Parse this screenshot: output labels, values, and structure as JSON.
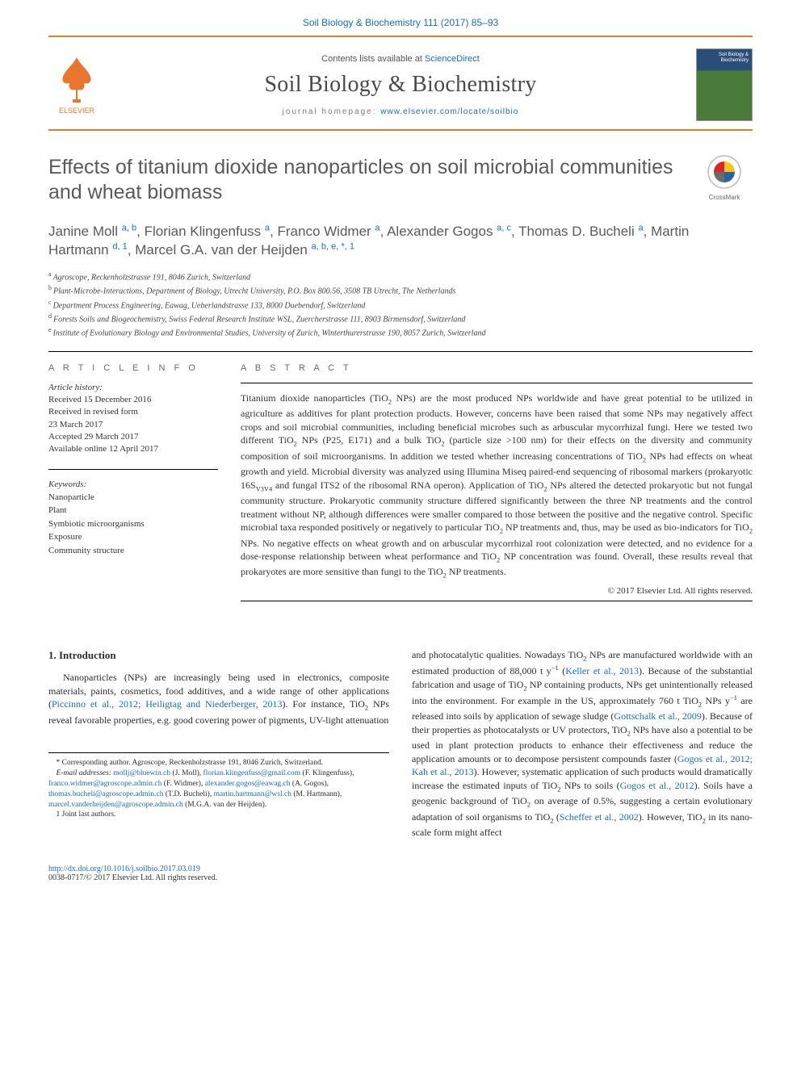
{
  "colors": {
    "accent_orange": "#e47c2f",
    "link_blue": "#1a6eb3",
    "heading_gray": "#5a5a5a",
    "body_text": "#333333"
  },
  "header": {
    "citation": "Soil Biology & Biochemistry 111 (2017) 85–93",
    "contents_prefix": "Contents lists available at ",
    "contents_link": "ScienceDirect",
    "journal_name": "Soil Biology & Biochemistry",
    "homepage_prefix": "journal homepage: ",
    "homepage_url": "www.elsevier.com/locate/soilbio",
    "publisher": "ELSEVIER",
    "cover_label": "Soil Biology & Biochemistry"
  },
  "title": "Effects of titanium dioxide nanoparticles on soil microbial communities and wheat biomass",
  "crossmark_label": "CrossMark",
  "authors_html": "Janine Moll <span class='aff-super'>a, b</span>, Florian Klingenfuss <span class='aff-super'>a</span>, Franco Widmer <span class='aff-super'>a</span>, Alexander Gogos <span class='aff-super'>a, c</span>, Thomas D. Bucheli <span class='aff-super'>a</span>, Martin Hartmann <span class='aff-super'>d, 1</span>, Marcel G.A. van der Heijden <span class='aff-super'>a, b, e, *, 1</span>",
  "affiliations": [
    {
      "key": "a",
      "text": "Agroscope, Reckenholzstrasse 191, 8046 Zurich, Switzerland"
    },
    {
      "key": "b",
      "text": "Plant-Microbe-Interactions, Department of Biology, Utrecht University, P.O. Box 800.56, 3508 TB Utrecht, The Netherlands"
    },
    {
      "key": "c",
      "text": "Department Process Engineering, Eawag, Ueberlandstrasse 133, 8000 Duebendorf, Switzerland"
    },
    {
      "key": "d",
      "text": "Forests Soils and Biogeochemistry, Swiss Federal Research Institute WSL, Zuercherstrasse 111, 8903 Birmensdorf, Switzerland"
    },
    {
      "key": "e",
      "text": "Institute of Evolutionary Biology and Environmental Studies, University of Zurich, Winterthurerstrasse 190, 8057 Zurich, Switzerland"
    }
  ],
  "info": {
    "heading": "A R T I C L E  I N F O",
    "history_label": "Article history:",
    "history": [
      "Received 15 December 2016",
      "Received in revised form",
      "23 March 2017",
      "Accepted 29 March 2017",
      "Available online 12 April 2017"
    ],
    "keywords_label": "Keywords:",
    "keywords": [
      "Nanoparticle",
      "Plant",
      "Symbiotic microorganisms",
      "Exposure",
      "Community structure"
    ]
  },
  "abstract": {
    "heading": "A B S T R A C T",
    "body_html": "Titanium dioxide nanoparticles (TiO<span class='sub'>2</span> NPs) are the most produced NPs worldwide and have great potential to be utilized in agriculture as additives for plant protection products. However, concerns have been raised that some NPs may negatively affect crops and soil microbial communities, including beneficial microbes such as arbuscular mycorrhizal fungi. Here we tested two different TiO<span class='sub'>2</span> NPs (P25, E171) and a bulk TiO<span class='sub'>2</span> (particle size &gt;100 nm) for their effects on the diversity and community composition of soil microorganisms. In addition we tested whether increasing concentrations of TiO<span class='sub'>2</span> NPs had effects on wheat growth and yield. Microbial diversity was analyzed using Illumina Miseq paired-end sequencing of ribosomal markers (prokaryotic 16S<span class='sub'>V3V4</span> and fungal ITS2 of the ribosomal RNA operon). Application of TiO<span class='sub'>2</span> NPs altered the detected prokaryotic but not fungal community structure. Prokaryotic community structure differed significantly between the three NP treatments and the control treatment without NP, although differences were smaller compared to those between the positive and the negative control. Specific microbial taxa responded positively or negatively to particular TiO<span class='sub'>2</span> NP treatments and, thus, may be used as bio-indicators for TiO<span class='sub'>2</span> NPs. No negative effects on wheat growth and on arbuscular mycorrhizal root colonization were detected, and no evidence for a dose-response relationship between wheat performance and TiO<span class='sub'>2</span> NP concentration was found. Overall, these results reveal that prokaryotes are more sensitive than fungi to the TiO<span class='sub'>2</span> NP treatments.",
    "copyright": "© 2017 Elsevier Ltd. All rights reserved."
  },
  "body": {
    "section_heading": "1. Introduction",
    "left_html": "Nanoparticles (NPs) are increasingly being used in electronics, composite materials, paints, cosmetics, food additives, and a wide range of other applications (<span class='cite-link'>Piccinno et al., 2012; Heiligtag and Niederberger, 2013</span>). For instance, TiO<span class='sub'>2</span> NPs reveal favorable properties, e.g. good covering power of pigments, UV-light attenuation",
    "right_html": "and photocatalytic qualities. Nowadays TiO<span class='sub'>2</span> NPs are manufactured worldwide with an estimated production of 88,000 t y<span class='sup'>−1</span> (<span class='cite-link'>Keller et al., 2013</span>). Because of the substantial fabrication and usage of TiO<span class='sub'>2</span> NP containing products, NPs get unintentionally released into the environment. For example in the US, approximately 760 t TiO<span class='sub'>2</span> NPs y<span class='sup'>−1</span> are released into soils by application of sewage sludge (<span class='cite-link'>Gottschalk et al., 2009</span>). Because of their properties as photocatalysts or UV protectors, TiO<span class='sub'>2</span> NPs have also a potential to be used in plant protection products to enhance their effectiveness and reduce the application amounts or to decompose persistent compounds faster (<span class='cite-link'>Gogos et al., 2012; Kah et al., 2013</span>). However, systematic application of such products would dramatically increase the estimated inputs of TiO<span class='sub'>2</span> NPs to soils (<span class='cite-link'>Gogos et al., 2012</span>). Soils have a geogenic background of TiO<span class='sub'>2</span> on average of 0.5%, suggesting a certain evolutionary adaptation of soil organisms to TiO<span class='sub'>2</span> (<span class='cite-link'>Scheffer et al., 2002</span>). However, TiO<span class='sub'>2</span> in its nano-scale form might affect"
  },
  "footnotes": {
    "corresponding": "* Corresponding author. Agroscope, Reckenholzstrasse 191, 8046 Zurich, Switzerland.",
    "emails_label": "E-mail addresses:",
    "emails_html": " <span class='cite-link'>mollj@bluewin.ch</span> (J. Moll), <span class='cite-link'>florian.klingenfuss@gmail.com</span> (F. Klingenfuss), <span class='cite-link'>franco.widmer@agroscope.admin.ch</span> (F. Widmer), <span class='cite-link'>alexander.gogos@eawag.ch</span> (A. Gogos), <span class='cite-link'>thomas.bucheli@agroscope.admin.ch</span> (T.D. Bucheli), <span class='cite-link'>martin.hartmann@wsl.ch</span> (M. Hartmann), <span class='cite-link'>marcel.vanderheijden@agroscope.admin.ch</span> (M.G.A. van der Heijden).",
    "joint": "1  Joint last authors."
  },
  "footer": {
    "doi": "http://dx.doi.org/10.1016/j.soilbio.2017.03.019",
    "issn_line": "0038-0717/© 2017 Elsevier Ltd. All rights reserved."
  }
}
